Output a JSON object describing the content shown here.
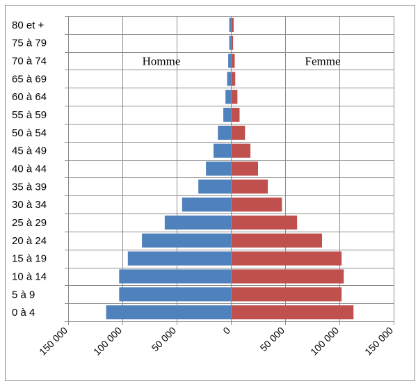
{
  "chart_data": {
    "type": "bar",
    "orientation": "horizontal",
    "layout": "population-pyramid",
    "categories": [
      "0 à 4",
      "5 à 9",
      "10 à 14",
      "15 à 19",
      "20 à 24",
      "25 à 29",
      "30 à 34",
      "35 à 39",
      "40 à 44",
      "45 à 49",
      "50 à 54",
      "55 à 59",
      "60 à 64",
      "65 à 69",
      "70 à 74",
      "75 à 79",
      "80 et +"
    ],
    "series": [
      {
        "name": "Homme",
        "color": "#4f81bd",
        "values": [
          115000,
          103000,
          103000,
          95000,
          82000,
          61000,
          45000,
          30000,
          23000,
          16000,
          12000,
          7000,
          5000,
          3500,
          2500,
          1500,
          1500
        ]
      },
      {
        "name": "Femme",
        "color": "#c0504d",
        "values": [
          113000,
          102000,
          104000,
          102000,
          84000,
          61000,
          47000,
          34000,
          25000,
          18000,
          13000,
          8000,
          6000,
          4000,
          3500,
          2000,
          2500
        ]
      }
    ],
    "x_ticks": [
      {
        "value": -150000,
        "label": "150 000"
      },
      {
        "value": -100000,
        "label": "100 000"
      },
      {
        "value": -50000,
        "label": "50 000"
      },
      {
        "value": 0,
        "label": "0"
      },
      {
        "value": 50000,
        "label": "50 000"
      },
      {
        "value": 100000,
        "label": "100 000"
      },
      {
        "value": 150000,
        "label": "150 000"
      }
    ],
    "xlim": [
      -150000,
      150000
    ],
    "grid": true,
    "title": "",
    "xlabel": "",
    "ylabel": ""
  }
}
